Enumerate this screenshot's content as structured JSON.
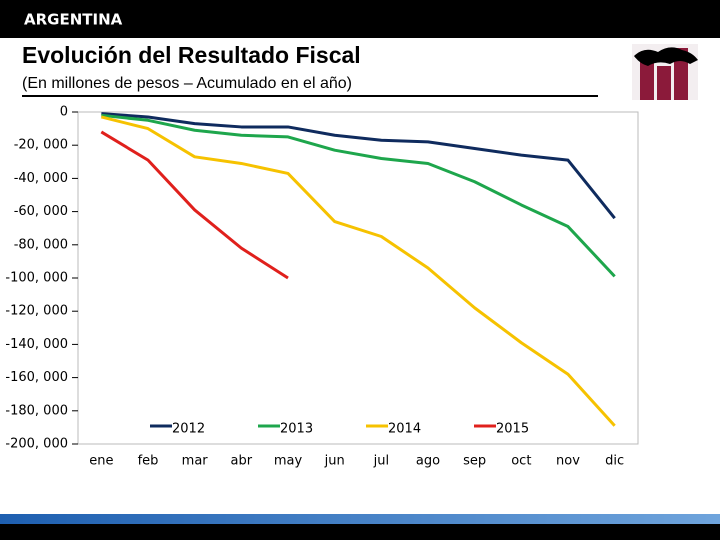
{
  "header": {
    "title": "ARGENTINA"
  },
  "chart_data": {
    "type": "line",
    "title": "Evolución del Resultado Fiscal",
    "subtitle": "(En millones de pesos – Acumulado en el año)",
    "categories": [
      "ene",
      "feb",
      "mar",
      "abr",
      "may",
      "jun",
      "jul",
      "ago",
      "sep",
      "oct",
      "nov",
      "dic"
    ],
    "series": [
      {
        "name": "2012",
        "color": "#0f2b5e",
        "values": [
          -1000,
          -3000,
          -7000,
          -9000,
          -9000,
          -14000,
          -17000,
          -18000,
          -22000,
          -26000,
          -29000,
          -64000
        ]
      },
      {
        "name": "2013",
        "color": "#1ea64c",
        "values": [
          -2000,
          -5000,
          -11000,
          -14000,
          -15000,
          -23000,
          -28000,
          -31000,
          -42000,
          -56000,
          -69000,
          -99000
        ]
      },
      {
        "name": "2014",
        "color": "#f6c200",
        "values": [
          -3000,
          -10000,
          -27000,
          -31000,
          -37000,
          -66000,
          -75000,
          -94000,
          -118000,
          -139000,
          -158000,
          -189000
        ]
      },
      {
        "name": "2015",
        "color": "#e0201c",
        "values": [
          -12000,
          -29000,
          -59000,
          -82000,
          -100000,
          null,
          null,
          null,
          null,
          null,
          null,
          null
        ]
      }
    ],
    "ylim": [
      -200000,
      0
    ],
    "yticks": [
      0,
      {
        "value": -20000,
        "label": "-20, 000"
      },
      {
        "value": -40000,
        "label": "-40, 000"
      },
      {
        "value": -60000,
        "label": "-60, 000"
      },
      {
        "value": -80000,
        "label": "-80, 000"
      },
      {
        "value": -100000,
        "label": "-100, 000"
      },
      {
        "value": -120000,
        "label": "-120, 000"
      },
      {
        "value": -140000,
        "label": "-140, 000"
      },
      {
        "value": -160000,
        "label": "-160, 000"
      },
      {
        "value": -180000,
        "label": "-180, 000"
      },
      {
        "value": -200000,
        "label": "-200, 000"
      }
    ]
  }
}
